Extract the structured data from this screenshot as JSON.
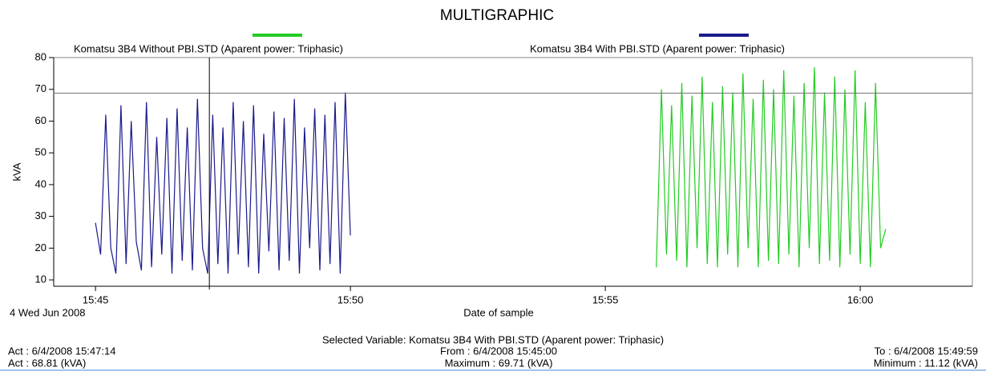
{
  "chart_data": {
    "type": "line",
    "title": "MULTIGRAPHIC",
    "ylabel": "kVA",
    "xlabel": "Date of sample",
    "date_label": "4 Wed Jun 2008",
    "series": [
      {
        "name": "Komatsu 3B4 Without PBI.STD (Aparent power: Triphasic)",
        "color": "#22cc22",
        "x": [
          56.0,
          56.1,
          56.2,
          56.3,
          56.4,
          56.5,
          56.6,
          56.7,
          56.8,
          56.9,
          57.0,
          57.1,
          57.2,
          57.3,
          57.4,
          57.5,
          57.6,
          57.7,
          57.8,
          57.9,
          58.0,
          58.1,
          58.2,
          58.3,
          58.4,
          58.5,
          58.6,
          58.7,
          58.8,
          58.9,
          59.0,
          59.1,
          59.2,
          59.3,
          59.4,
          59.5,
          59.6,
          59.7,
          59.8,
          59.9,
          60.0,
          60.1,
          60.2,
          60.3,
          60.4,
          60.5
        ],
        "values": [
          14,
          70,
          18,
          65,
          16,
          72,
          14,
          68,
          20,
          74,
          15,
          66,
          14,
          71,
          18,
          69,
          14,
          75,
          20,
          67,
          14,
          73,
          16,
          70,
          15,
          76,
          18,
          68,
          14,
          72,
          20,
          77,
          15,
          69,
          16,
          74,
          14,
          70,
          18,
          76,
          15,
          66,
          14,
          72,
          20,
          26
        ]
      },
      {
        "name": "Komatsu 3B4 With PBI.STD (Aparent power: Triphasic)",
        "color": "#1a1a8c",
        "x": [
          45.0,
          45.1,
          45.2,
          45.3,
          45.4,
          45.5,
          45.6,
          45.7,
          45.8,
          45.9,
          46.0,
          46.1,
          46.2,
          46.3,
          46.4,
          46.5,
          46.6,
          46.7,
          46.8,
          46.9,
          47.0,
          47.1,
          47.2,
          47.3,
          47.4,
          47.5,
          47.6,
          47.7,
          47.8,
          47.9,
          48.0,
          48.1,
          48.2,
          48.3,
          48.4,
          48.5,
          48.6,
          48.7,
          48.8,
          48.9,
          49.0,
          49.1,
          49.2,
          49.3,
          49.4,
          49.5,
          49.6,
          49.7,
          49.8,
          49.9,
          50.0
        ],
        "values": [
          28,
          18,
          62,
          20,
          12,
          65,
          15,
          60,
          22,
          13,
          66,
          14,
          55,
          18,
          61,
          12,
          64,
          16,
          58,
          13,
          67,
          20,
          12,
          62,
          15,
          58,
          12,
          66,
          18,
          60,
          14,
          65,
          12,
          56,
          19,
          63,
          13,
          61,
          16,
          67,
          12,
          58,
          20,
          64,
          13,
          62,
          15,
          66,
          12,
          69,
          24
        ]
      }
    ],
    "xlim": [
      44.18,
      62.2
    ],
    "xticks": [
      {
        "value": 45,
        "label": "15:45"
      },
      {
        "value": 50,
        "label": "15:50"
      },
      {
        "value": 55,
        "label": "15:55"
      },
      {
        "value": 60,
        "label": "16:00"
      }
    ],
    "ylim": [
      8,
      80
    ],
    "yticks": [
      10,
      20,
      30,
      40,
      50,
      60,
      70,
      80
    ],
    "cursor_x": 47.2333,
    "cursor_y": 68.81,
    "footer": {
      "selected": "Selected Variable: Komatsu 3B4 With PBI.STD (Aparent power: Triphasic)",
      "act_time": "Act : 6/4/2008 15:47:14",
      "act_value": "Act : 68.81 (kVA)",
      "from": "From : 6/4/2008 15:45:00",
      "maximum": "Maximum : 69.71 (kVA)",
      "to": "To : 6/4/2008 15:49:59",
      "minimum": "Minimum : 11.12 (kVA)"
    }
  }
}
